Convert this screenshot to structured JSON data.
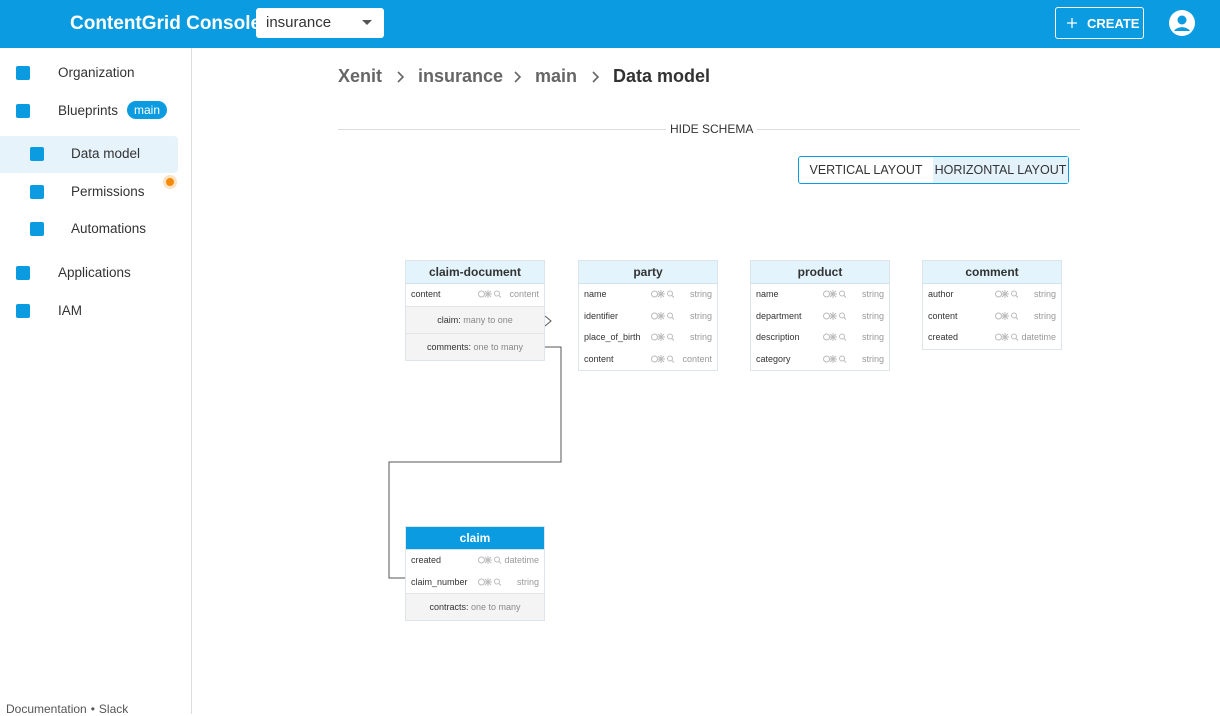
{
  "header": {
    "title": "ContentGrid Console",
    "project": "insurance",
    "create": "CREATE"
  },
  "sidebar": {
    "items": [
      {
        "label": "Organization"
      },
      {
        "label": "Blueprints",
        "badge": "main"
      },
      {
        "label": "Data model"
      },
      {
        "label": "Permissions"
      },
      {
        "label": "Automations"
      },
      {
        "label": "Applications"
      },
      {
        "label": "IAM"
      }
    ],
    "footer": {
      "links": [
        "Documentation",
        "Slack"
      ],
      "separator": "•"
    }
  },
  "breadcrumb": [
    "Xenit",
    "insurance",
    "main",
    "Data model"
  ],
  "schema_toggle": "HIDE SCHEMA",
  "layout_buttons": [
    "VERTICAL LAYOUT",
    "HORIZONTAL LAYOUT"
  ],
  "entities": [
    {
      "name": "claim-document",
      "attributes": [
        {
          "name": "content",
          "type": "content"
        }
      ],
      "relations": [
        {
          "name": "claim:",
          "kind": "many to one"
        },
        {
          "name": "comments:",
          "kind": "one to many"
        }
      ]
    },
    {
      "name": "party",
      "attributes": [
        {
          "name": "name",
          "type": "string"
        },
        {
          "name": "identifier",
          "type": "string"
        },
        {
          "name": "place_of_birth",
          "type": "string"
        },
        {
          "name": "content",
          "type": "content"
        }
      ],
      "relations": []
    },
    {
      "name": "product",
      "attributes": [
        {
          "name": "name",
          "type": "string"
        },
        {
          "name": "department",
          "type": "string"
        },
        {
          "name": "description",
          "type": "string"
        },
        {
          "name": "category",
          "type": "string"
        }
      ],
      "relations": []
    },
    {
      "name": "comment",
      "attributes": [
        {
          "name": "author",
          "type": "string"
        },
        {
          "name": "content",
          "type": "string"
        },
        {
          "name": "created",
          "type": "datetime"
        }
      ],
      "relations": []
    },
    {
      "name": "claim",
      "attributes": [
        {
          "name": "created",
          "type": "datetime"
        },
        {
          "name": "claim_number",
          "type": "string"
        }
      ],
      "relations": [
        {
          "name": "contracts:",
          "kind": "one to many"
        }
      ]
    }
  ]
}
